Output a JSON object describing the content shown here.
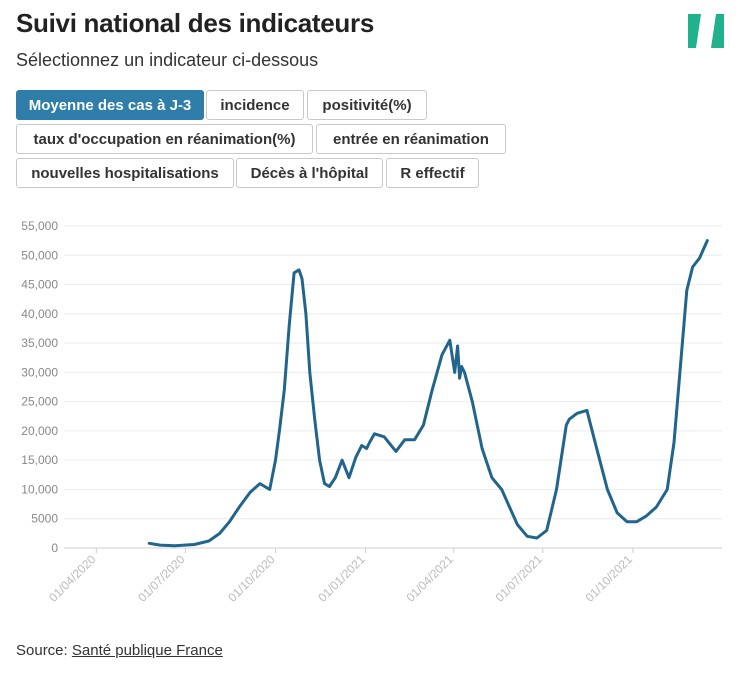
{
  "header": {
    "title": "Suivi national des indicateurs",
    "subtitle": "Sélectionnez un indicateur ci-dessous",
    "logo_icon": "huffpost-slash-logo",
    "logo_color": "#22b18d"
  },
  "buttons": [
    {
      "label": "Moyenne des cas à J-3",
      "active": true
    },
    {
      "label": "incidence",
      "active": false
    },
    {
      "label": "positivité(%)",
      "active": false
    },
    {
      "label": "taux d'occupation en réanimation(%)",
      "active": false
    },
    {
      "label": "entrée en réanimation",
      "active": false
    },
    {
      "label": "nouvelles hospitalisations",
      "active": false
    },
    {
      "label": "Décès à l'hôpital",
      "active": false
    },
    {
      "label": "R effectif",
      "active": false
    }
  ],
  "accent_color": "#2f7eaa",
  "line_color": "#21658c",
  "chart_data": {
    "type": "line",
    "title": "Moyenne des cas à J-3",
    "xlabel": "",
    "ylabel": "",
    "ylim": [
      0,
      55000
    ],
    "yticks": [
      0,
      5000,
      10000,
      15000,
      20000,
      25000,
      30000,
      35000,
      40000,
      45000,
      50000,
      55000
    ],
    "ytick_labels": [
      "0",
      "5000",
      "10,000",
      "15,000",
      "20,000",
      "25,000",
      "30,000",
      "35,000",
      "40,000",
      "45,000",
      "50,000",
      "55,000"
    ],
    "xlim": [
      "2020-03-01",
      "2021-12-31"
    ],
    "xticks": [
      "2020-04-01",
      "2020-07-01",
      "2020-10-01",
      "2021-01-01",
      "2021-04-01",
      "2021-07-01",
      "2021-10-01"
    ],
    "xtick_labels": [
      "01/04/2020",
      "01/07/2020",
      "01/10/2020",
      "01/01/2021",
      "01/04/2021",
      "01/07/2021",
      "01/10/2021"
    ],
    "grid": true,
    "series": [
      {
        "name": "Moyenne des cas à J-3",
        "x": [
          "2020-05-25",
          "2020-06-05",
          "2020-06-20",
          "2020-07-10",
          "2020-07-25",
          "2020-08-05",
          "2020-08-15",
          "2020-08-25",
          "2020-09-05",
          "2020-09-15",
          "2020-09-25",
          "2020-10-01",
          "2020-10-05",
          "2020-10-10",
          "2020-10-15",
          "2020-10-20",
          "2020-10-25",
          "2020-10-28",
          "2020-11-01",
          "2020-11-05",
          "2020-11-10",
          "2020-11-15",
          "2020-11-20",
          "2020-11-25",
          "2020-12-01",
          "2020-12-08",
          "2020-12-15",
          "2020-12-22",
          "2020-12-28",
          "2021-01-02",
          "2021-01-05",
          "2021-01-10",
          "2021-01-20",
          "2021-02-01",
          "2021-02-10",
          "2021-02-20",
          "2021-03-01",
          "2021-03-10",
          "2021-03-20",
          "2021-03-28",
          "2021-04-02",
          "2021-04-05",
          "2021-04-07",
          "2021-04-09",
          "2021-04-12",
          "2021-04-20",
          "2021-04-30",
          "2021-05-10",
          "2021-05-20",
          "2021-05-28",
          "2021-06-05",
          "2021-06-15",
          "2021-06-25",
          "2021-07-05",
          "2021-07-15",
          "2021-07-25",
          "2021-07-28",
          "2021-08-05",
          "2021-08-15",
          "2021-08-25",
          "2021-09-05",
          "2021-09-15",
          "2021-09-25",
          "2021-10-05",
          "2021-10-15",
          "2021-10-25",
          "2021-11-05",
          "2021-11-12",
          "2021-11-18",
          "2021-11-25",
          "2021-12-01",
          "2021-12-08",
          "2021-12-12",
          "2021-12-16"
        ],
        "values": [
          800,
          500,
          400,
          600,
          1200,
          2500,
          4500,
          7000,
          9500,
          11000,
          10000,
          15000,
          20000,
          27000,
          38000,
          47000,
          47500,
          46000,
          40000,
          30000,
          22000,
          15000,
          11000,
          10500,
          12000,
          15000,
          12000,
          15500,
          17500,
          17000,
          18000,
          19500,
          19000,
          16500,
          18500,
          18500,
          21000,
          27000,
          33000,
          35500,
          30000,
          34500,
          29000,
          31000,
          30000,
          25000,
          17000,
          12000,
          10000,
          7000,
          4000,
          2000,
          1700,
          3000,
          10000,
          21000,
          22000,
          23000,
          23500,
          17000,
          10000,
          6000,
          4500,
          4500,
          5500,
          7000,
          10000,
          18000,
          30000,
          44000,
          48000,
          49500,
          51000,
          52500
        ]
      }
    ],
    "source_prefix": "Source: ",
    "source_link": "Santé publique France"
  }
}
